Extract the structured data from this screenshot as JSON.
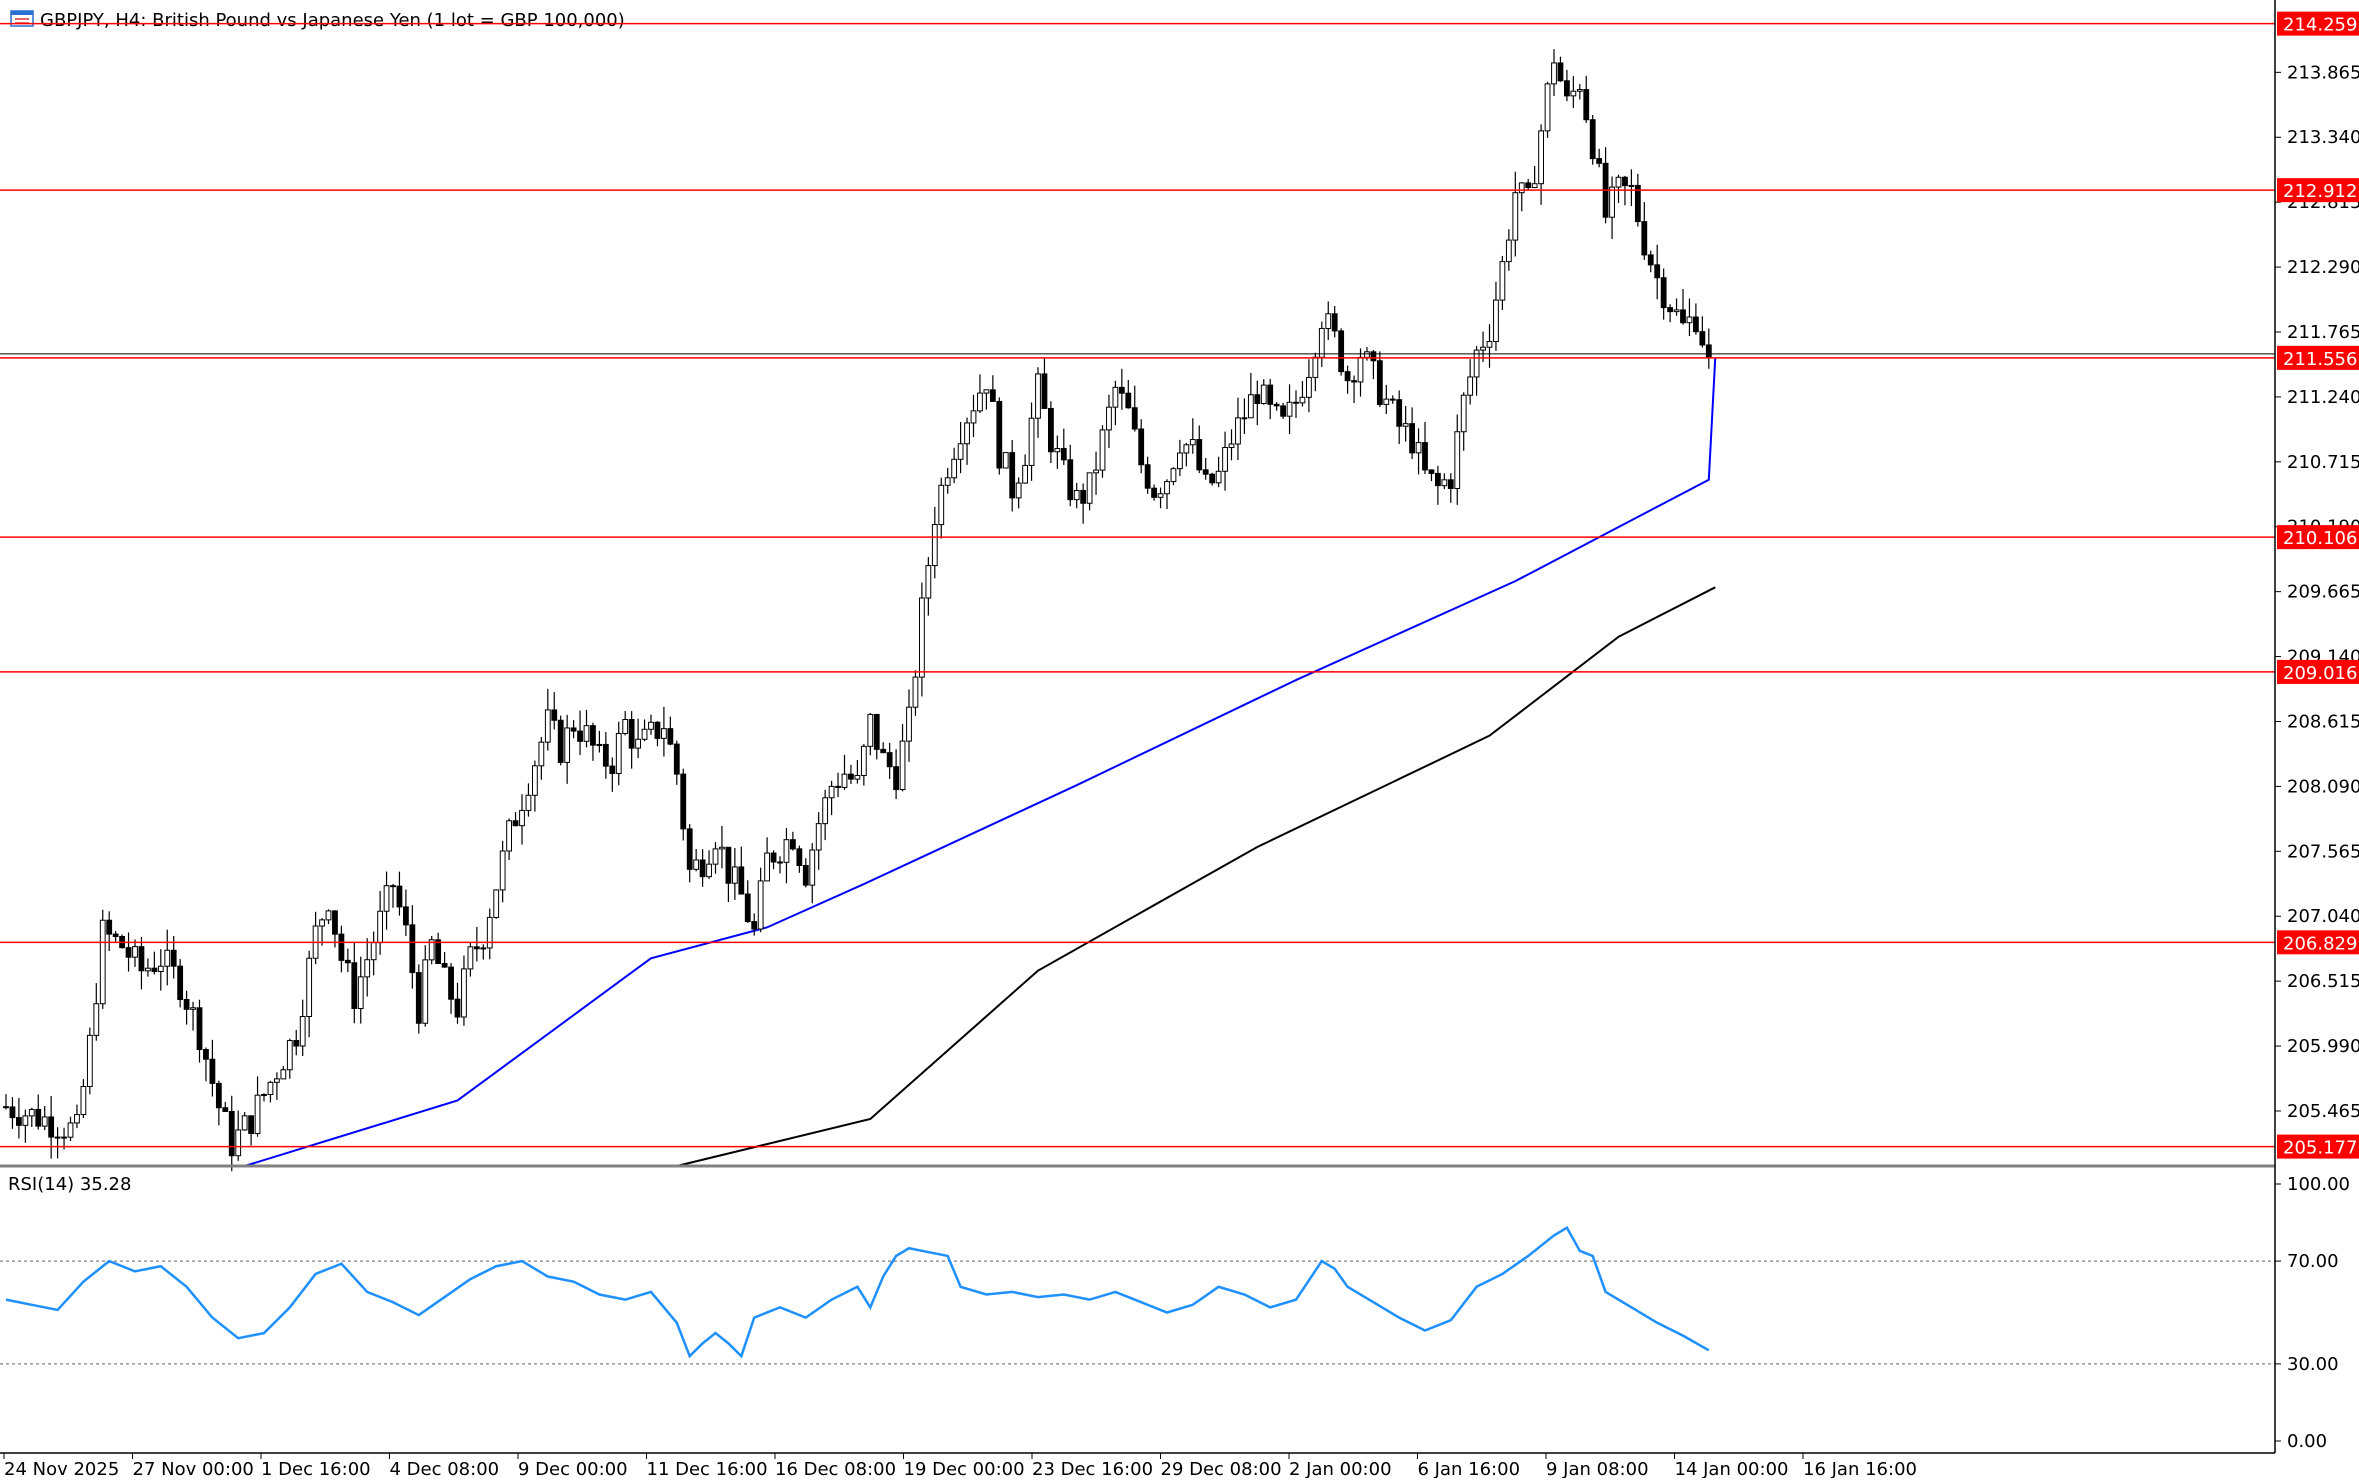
{
  "header": {
    "title": "GBPJPY, H4:  British Pound vs Japanese Yen (1 lot = GBP 100,000)",
    "icon": "chart-window-icon"
  },
  "colors": {
    "background": "#ffffff",
    "candle": "#000000",
    "level_line": "#ff0000",
    "level_label_bg": "#ff0000",
    "level_label_text": "#ffffff",
    "ma_fast": "#0000ff",
    "ma_slow": "#000000",
    "rsi_line": "#1e90ff",
    "axis_text": "#000000",
    "separator": "#808080"
  },
  "chart_data": [
    {
      "type": "candlestick",
      "symbol": "GBPJPY",
      "timeframe": "H4",
      "ylim": [
        205.02,
        214.45
      ],
      "y_ticks": [
        213.865,
        213.34,
        212.815,
        212.29,
        211.765,
        211.24,
        210.715,
        210.19,
        209.665,
        209.14,
        208.615,
        208.09,
        207.565,
        207.04,
        206.515,
        205.99,
        205.465
      ],
      "x_labels": [
        "24 Nov 2025",
        "27 Nov 00:00",
        "1 Dec 16:00",
        "4 Dec 08:00",
        "9 Dec 00:00",
        "11 Dec 16:00",
        "16 Dec 08:00",
        "19 Dec 00:00",
        "23 Dec 16:00",
        "29 Dec 08:00",
        "2 Jan 00:00",
        "6 Jan 16:00",
        "9 Jan 08:00",
        "14 Jan 00:00",
        "16 Jan 16:00"
      ],
      "horizontal_levels": [
        214.259,
        212.912,
        211.556,
        210.106,
        209.016,
        206.829,
        205.177
      ],
      "current_price": 211.556,
      "close_path": [
        [
          0,
          205.5
        ],
        [
          6,
          205.4
        ],
        [
          11,
          205.3
        ],
        [
          13,
          206.0
        ],
        [
          15,
          206.9
        ],
        [
          18,
          206.8
        ],
        [
          21,
          206.6
        ],
        [
          24,
          206.7
        ],
        [
          27,
          206.5
        ],
        [
          30,
          206.1
        ],
        [
          33,
          205.5
        ],
        [
          35,
          205.2
        ],
        [
          38,
          205.4
        ],
        [
          40,
          205.6
        ],
        [
          43,
          205.9
        ],
        [
          45,
          206.1
        ],
        [
          48,
          206.9
        ],
        [
          50,
          207.2
        ],
        [
          52,
          206.7
        ],
        [
          54,
          206.4
        ],
        [
          56,
          206.7
        ],
        [
          58,
          207.0
        ],
        [
          60,
          207.3
        ],
        [
          62,
          206.9
        ],
        [
          64,
          206.3
        ],
        [
          66,
          206.8
        ],
        [
          68,
          206.5
        ],
        [
          70,
          206.3
        ],
        [
          72,
          206.7
        ],
        [
          74,
          206.9
        ],
        [
          76,
          207.3
        ],
        [
          78,
          207.7
        ],
        [
          80,
          208.0
        ],
        [
          82,
          208.3
        ],
        [
          84,
          208.6
        ],
        [
          86,
          208.4
        ],
        [
          88,
          208.6
        ],
        [
          90,
          208.5
        ],
        [
          92,
          208.3
        ],
        [
          94,
          208.3
        ],
        [
          96,
          208.6
        ],
        [
          98,
          208.4
        ],
        [
          100,
          208.5
        ],
        [
          102,
          208.6
        ],
        [
          104,
          208.2
        ],
        [
          106,
          207.4
        ],
        [
          108,
          207.5
        ],
        [
          110,
          207.7
        ],
        [
          112,
          207.4
        ],
        [
          114,
          207.2
        ],
        [
          116,
          206.9
        ],
        [
          118,
          207.5
        ],
        [
          120,
          207.6
        ],
        [
          122,
          207.7
        ],
        [
          124,
          207.4
        ],
        [
          126,
          207.8
        ],
        [
          128,
          208.1
        ],
        [
          130,
          208.2
        ],
        [
          132,
          208.1
        ],
        [
          134,
          208.6
        ],
        [
          136,
          208.3
        ],
        [
          138,
          208.2
        ],
        [
          140,
          208.6
        ],
        [
          142,
          209.5
        ],
        [
          144,
          210.3
        ],
        [
          146,
          210.7
        ],
        [
          148,
          211.0
        ],
        [
          150,
          211.2
        ],
        [
          152,
          211.4
        ],
        [
          154,
          210.8
        ],
        [
          156,
          210.5
        ],
        [
          158,
          210.8
        ],
        [
          160,
          211.3
        ],
        [
          162,
          210.9
        ],
        [
          164,
          210.6
        ],
        [
          166,
          210.4
        ],
        [
          168,
          210.5
        ],
        [
          170,
          210.9
        ],
        [
          172,
          211.3
        ],
        [
          174,
          211.1
        ],
        [
          176,
          210.7
        ],
        [
          178,
          210.5
        ],
        [
          180,
          210.6
        ],
        [
          182,
          210.9
        ],
        [
          184,
          210.8
        ],
        [
          186,
          210.5
        ],
        [
          188,
          210.6
        ],
        [
          190,
          210.9
        ],
        [
          192,
          211.1
        ],
        [
          194,
          211.3
        ],
        [
          196,
          211.1
        ],
        [
          198,
          211.0
        ],
        [
          200,
          211.2
        ],
        [
          202,
          211.5
        ],
        [
          204,
          211.9
        ],
        [
          206,
          211.7
        ],
        [
          208,
          211.4
        ],
        [
          210,
          211.6
        ],
        [
          212,
          211.4
        ],
        [
          214,
          211.2
        ],
        [
          216,
          211.0
        ],
        [
          218,
          210.9
        ],
        [
          220,
          210.6
        ],
        [
          222,
          210.5
        ],
        [
          224,
          210.6
        ],
        [
          226,
          211.2
        ],
        [
          228,
          211.6
        ],
        [
          230,
          211.8
        ],
        [
          232,
          212.3
        ],
        [
          234,
          212.9
        ],
        [
          236,
          212.8
        ],
        [
          238,
          213.4
        ],
        [
          240,
          214.0
        ],
        [
          242,
          213.6
        ],
        [
          244,
          213.8
        ],
        [
          246,
          213.3
        ],
        [
          248,
          212.7
        ],
        [
          250,
          212.9
        ],
        [
          252,
          212.9
        ],
        [
          254,
          212.5
        ],
        [
          256,
          212.2
        ],
        [
          258,
          212.0
        ],
        [
          260,
          211.8
        ],
        [
          262,
          211.9
        ],
        [
          264,
          211.556
        ]
      ],
      "series": [
        {
          "name": "MA",
          "color": "#0000ff",
          "values": [
            [
              37,
              205.02
            ],
            [
              70,
              205.55
            ],
            [
              100,
              206.7
            ],
            [
              118,
              206.95
            ],
            [
              133,
              207.3
            ],
            [
              166,
              208.1
            ],
            [
              200,
              208.95
            ],
            [
              234,
              209.75
            ],
            [
              264,
              210.57
            ],
            [
              265,
              211.556
            ]
          ]
        },
        {
          "name": "MA",
          "color": "#000000",
          "values": [
            [
              104,
              205.02
            ],
            [
              134,
              205.4
            ],
            [
              160,
              206.6
            ],
            [
              194,
              207.6
            ],
            [
              230,
              208.5
            ],
            [
              250,
              209.3
            ],
            [
              265,
              209.7
            ]
          ]
        }
      ]
    },
    {
      "type": "line",
      "title": "RSI(14) 35.28",
      "ylim": [
        0,
        100
      ],
      "y_ticks": [
        100.0,
        70.0,
        30.0,
        0.0
      ],
      "levels": [
        70,
        30
      ],
      "series": [
        {
          "name": "RSI(14)",
          "color": "#1e90ff",
          "values": [
            [
              0,
              55
            ],
            [
              4,
              53
            ],
            [
              8,
              51
            ],
            [
              12,
              62
            ],
            [
              16,
              70
            ],
            [
              20,
              66
            ],
            [
              24,
              68
            ],
            [
              28,
              60
            ],
            [
              32,
              48
            ],
            [
              36,
              40
            ],
            [
              40,
              42
            ],
            [
              44,
              52
            ],
            [
              48,
              65
            ],
            [
              52,
              69
            ],
            [
              56,
              58
            ],
            [
              60,
              54
            ],
            [
              64,
              49
            ],
            [
              68,
              56
            ],
            [
              72,
              63
            ],
            [
              76,
              68
            ],
            [
              80,
              70
            ],
            [
              84,
              64
            ],
            [
              88,
              62
            ],
            [
              92,
              57
            ],
            [
              96,
              55
            ],
            [
              100,
              58
            ],
            [
              104,
              46
            ],
            [
              106,
              33
            ],
            [
              108,
              38
            ],
            [
              110,
              42
            ],
            [
              112,
              38
            ],
            [
              114,
              33
            ],
            [
              116,
              48
            ],
            [
              120,
              52
            ],
            [
              124,
              48
            ],
            [
              128,
              55
            ],
            [
              132,
              60
            ],
            [
              134,
              52
            ],
            [
              136,
              64
            ],
            [
              138,
              72
            ],
            [
              140,
              75
            ],
            [
              142,
              74
            ],
            [
              146,
              72
            ],
            [
              148,
              60
            ],
            [
              152,
              57
            ],
            [
              156,
              58
            ],
            [
              160,
              56
            ],
            [
              164,
              57
            ],
            [
              168,
              55
            ],
            [
              172,
              58
            ],
            [
              176,
              54
            ],
            [
              180,
              50
            ],
            [
              184,
              53
            ],
            [
              188,
              60
            ],
            [
              192,
              57
            ],
            [
              196,
              52
            ],
            [
              200,
              55
            ],
            [
              204,
              70
            ],
            [
              206,
              67
            ],
            [
              208,
              60
            ],
            [
              212,
              54
            ],
            [
              216,
              48
            ],
            [
              220,
              43
            ],
            [
              224,
              47
            ],
            [
              228,
              60
            ],
            [
              232,
              65
            ],
            [
              236,
              72
            ],
            [
              240,
              80
            ],
            [
              242,
              83
            ],
            [
              244,
              74
            ],
            [
              246,
              72
            ],
            [
              248,
              58
            ],
            [
              252,
              52
            ],
            [
              256,
              46
            ],
            [
              260,
              41
            ],
            [
              264,
              35.28
            ]
          ]
        }
      ]
    }
  ]
}
